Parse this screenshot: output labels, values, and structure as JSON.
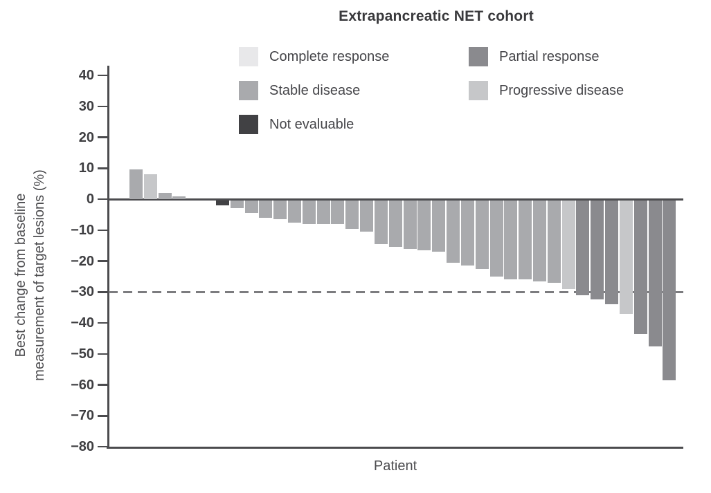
{
  "title": "Extrapancreatic NET cohort",
  "colors": {
    "complete": "#e8e8ea",
    "stable": "#a9aaad",
    "not_evaluable": "#414144",
    "partial": "#8a8a8e",
    "progressive": "#c6c7c9",
    "axis": "#4b4b4e",
    "dashed_line": "#7c7c7f"
  },
  "legend": {
    "columns": [
      {
        "items": [
          {
            "label": "Complete response",
            "key": "complete"
          },
          {
            "label": "Stable disease",
            "key": "stable"
          },
          {
            "label": "Not evaluable",
            "key": "not_evaluable"
          }
        ]
      },
      {
        "items": [
          {
            "label": "Partial response",
            "key": "partial"
          },
          {
            "label": "Progressive disease",
            "key": "progressive"
          }
        ]
      }
    ]
  },
  "chart_data": {
    "type": "bar",
    "subtype": "waterfall",
    "title": "Extrapancreatic NET cohort",
    "xlabel": "Patient",
    "ylabel_lines": [
      "Best change from baseline",
      "measurement of target lesions (%)"
    ],
    "ylim": [
      -80,
      40
    ],
    "yticks": [
      40,
      30,
      20,
      10,
      0,
      -10,
      -20,
      -30,
      -40,
      -50,
      -60,
      -70,
      -80
    ],
    "ytick_labels": [
      "40",
      "30",
      "20",
      "10",
      "0",
      "−10",
      "−20",
      "−30",
      "−40",
      "−50",
      "−60",
      "−70",
      "−80"
    ],
    "grid": false,
    "legend_position": "top",
    "reference_lines": [
      {
        "y": 0,
        "style": "solid"
      },
      {
        "y": -30,
        "style": "dashed"
      }
    ],
    "patients": [
      {
        "patient": 1,
        "value": 9.5,
        "response": "stable"
      },
      {
        "patient": 2,
        "value": 8,
        "response": "progressive"
      },
      {
        "patient": 3,
        "value": 2,
        "response": "stable"
      },
      {
        "patient": 4,
        "value": 1,
        "response": "stable"
      },
      {
        "patient": 5,
        "value": 0,
        "response": "stable"
      },
      {
        "patient": 6,
        "value": 0,
        "response": "stable"
      },
      {
        "patient": 7,
        "value": -2,
        "response": "not_evaluable"
      },
      {
        "patient": 8,
        "value": -3,
        "response": "stable"
      },
      {
        "patient": 9,
        "value": -4.5,
        "response": "stable"
      },
      {
        "patient": 10,
        "value": -6,
        "response": "stable"
      },
      {
        "patient": 11,
        "value": -6.5,
        "response": "stable"
      },
      {
        "patient": 12,
        "value": -7.5,
        "response": "stable"
      },
      {
        "patient": 13,
        "value": -8,
        "response": "stable"
      },
      {
        "patient": 14,
        "value": -8,
        "response": "stable"
      },
      {
        "patient": 15,
        "value": -8,
        "response": "stable"
      },
      {
        "patient": 16,
        "value": -9.5,
        "response": "stable"
      },
      {
        "patient": 17,
        "value": -10.5,
        "response": "stable"
      },
      {
        "patient": 18,
        "value": -14.5,
        "response": "stable"
      },
      {
        "patient": 19,
        "value": -15.5,
        "response": "stable"
      },
      {
        "patient": 20,
        "value": -16,
        "response": "stable"
      },
      {
        "patient": 21,
        "value": -16.5,
        "response": "stable"
      },
      {
        "patient": 22,
        "value": -17,
        "response": "stable"
      },
      {
        "patient": 23,
        "value": -20.5,
        "response": "stable"
      },
      {
        "patient": 24,
        "value": -21.5,
        "response": "stable"
      },
      {
        "patient": 25,
        "value": -22.5,
        "response": "stable"
      },
      {
        "patient": 26,
        "value": -25,
        "response": "stable"
      },
      {
        "patient": 27,
        "value": -26,
        "response": "stable"
      },
      {
        "patient": 28,
        "value": -26,
        "response": "stable"
      },
      {
        "patient": 29,
        "value": -26.5,
        "response": "stable"
      },
      {
        "patient": 30,
        "value": -27,
        "response": "stable"
      },
      {
        "patient": 31,
        "value": -29,
        "response": "progressive"
      },
      {
        "patient": 32,
        "value": -31,
        "response": "partial"
      },
      {
        "patient": 33,
        "value": -32.5,
        "response": "partial"
      },
      {
        "patient": 34,
        "value": -34,
        "response": "partial"
      },
      {
        "patient": 35,
        "value": -37,
        "response": "progressive"
      },
      {
        "patient": 36,
        "value": -43.5,
        "response": "partial"
      },
      {
        "patient": 37,
        "value": -47.5,
        "response": "partial"
      },
      {
        "patient": 38,
        "value": -58.5,
        "response": "partial"
      }
    ]
  }
}
